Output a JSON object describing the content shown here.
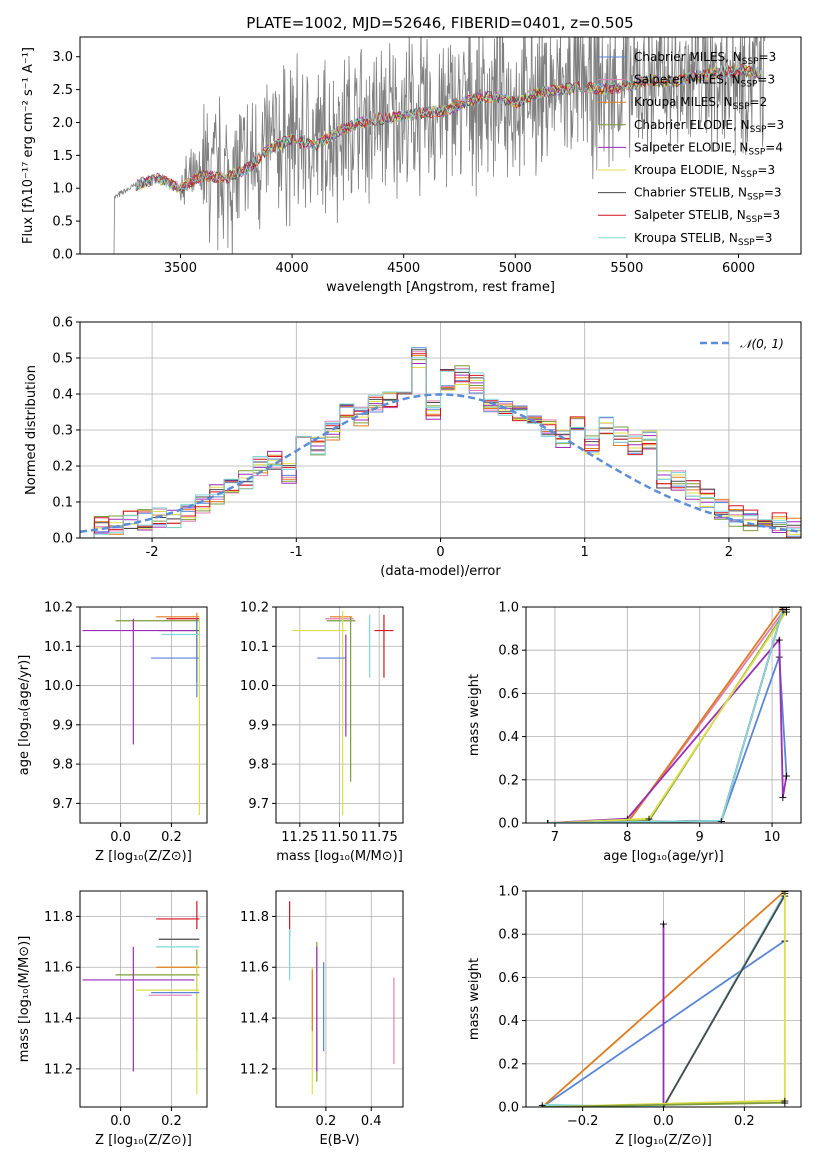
{
  "colors": {
    "Chabrier MILES": "#5b86d6",
    "Salpeter MILES": "#e07fb3",
    "Kroupa MILES": "#e07c1e",
    "Chabrier ELODIE": "#7d9c3e",
    "Salpeter ELODIE": "#9b2eb8",
    "Kroupa ELODIE": "#dede4a",
    "Chabrier STELIB": "#4a4a4a",
    "Salpeter STELIB": "#d4141e",
    "Kroupa STELIB": "#7fd9de",
    "gauss": "#5b8ed6",
    "data": "#7f7f7f"
  },
  "chart_data": [
    {
      "id": "spectrum",
      "type": "line",
      "title": "PLATE=1002, MJD=52646, FIBERID=0401, z=0.505",
      "xlabel": "wavelength [Angstrom, rest frame]",
      "ylabel": "Flux [fλ10⁻¹⁷ erg cm⁻² s⁻¹ A⁻¹]",
      "xlim": [
        3050,
        6280
      ],
      "ylim": [
        0,
        3.3
      ],
      "xticks": [
        3500,
        4000,
        4500,
        5000,
        5500,
        6000
      ],
      "yticks": [
        0.0,
        0.5,
        1.0,
        1.5,
        2.0,
        2.5,
        3.0
      ],
      "legend_position": "upper right",
      "legend": [
        {
          "name": "Chabrier MILES",
          "nssp": "3"
        },
        {
          "name": "Salpeter MILES",
          "nssp": "3"
        },
        {
          "name": "Kroupa MILES",
          "nssp": "2"
        },
        {
          "name": "Chabrier ELODIE",
          "nssp": "3"
        },
        {
          "name": "Salpeter ELODIE",
          "nssp": "4"
        },
        {
          "name": "Kroupa ELODIE",
          "nssp": "3"
        },
        {
          "name": "Chabrier STELIB",
          "nssp": "3"
        },
        {
          "name": "Salpeter STELIB",
          "nssp": "3"
        },
        {
          "name": "Kroupa STELIB",
          "nssp": "3"
        }
      ],
      "model_continuum": {
        "x": [
          3200,
          3300,
          3400,
          3500,
          3600,
          3700,
          3800,
          3900,
          4000,
          4100,
          4200,
          4300,
          4400,
          4500,
          4600,
          4700,
          4800,
          4900,
          5000,
          5100,
          5200,
          5300,
          5400,
          5500,
          5600,
          5700,
          5800,
          5900,
          6000,
          6100
        ],
        "y": [
          0.85,
          1.05,
          1.15,
          1.0,
          1.2,
          1.15,
          1.3,
          1.6,
          1.75,
          1.65,
          1.85,
          2.0,
          2.05,
          2.1,
          2.15,
          2.2,
          2.35,
          2.4,
          2.3,
          2.45,
          2.5,
          2.55,
          2.5,
          2.55,
          2.65,
          2.6,
          2.7,
          2.75,
          2.8,
          2.75
        ]
      }
    },
    {
      "id": "residuals",
      "type": "bar",
      "xlabel": "(data-model)/error",
      "ylabel": "Normed distribution",
      "xlim": [
        -2.5,
        2.5
      ],
      "ylim": [
        0,
        0.6
      ],
      "xticks": [
        -2,
        -1,
        0,
        1,
        2
      ],
      "yticks": [
        0.0,
        0.1,
        0.2,
        0.3,
        0.4,
        0.5,
        0.6
      ],
      "legend_position": "upper right",
      "gauss_label": "𝒩(0, 1)",
      "bin_edges": [
        -2.5,
        -2.4,
        -2.3,
        -2.2,
        -2.1,
        -2.0,
        -1.9,
        -1.8,
        -1.7,
        -1.6,
        -1.5,
        -1.4,
        -1.3,
        -1.2,
        -1.1,
        -1.0,
        -0.9,
        -0.8,
        -0.7,
        -0.6,
        -0.5,
        -0.4,
        -0.3,
        -0.2,
        -0.1,
        0.0,
        0.1,
        0.2,
        0.3,
        0.4,
        0.5,
        0.6,
        0.7,
        0.8,
        0.9,
        1.0,
        1.1,
        1.2,
        1.3,
        1.4,
        1.5,
        1.6,
        1.7,
        1.8,
        1.9,
        2.0,
        2.1,
        2.2,
        2.3,
        2.4,
        2.5
      ],
      "hist_mean": [
        0.02,
        0.03,
        0.04,
        0.05,
        0.05,
        0.06,
        0.05,
        0.07,
        0.09,
        0.12,
        0.14,
        0.16,
        0.2,
        0.22,
        0.18,
        0.28,
        0.26,
        0.3,
        0.35,
        0.34,
        0.37,
        0.39,
        0.4,
        0.5,
        0.36,
        0.44,
        0.45,
        0.43,
        0.38,
        0.36,
        0.34,
        0.31,
        0.3,
        0.28,
        0.31,
        0.26,
        0.31,
        0.28,
        0.26,
        0.27,
        0.16,
        0.16,
        0.13,
        0.11,
        0.08,
        0.06,
        0.05,
        0.04,
        0.04,
        0.03
      ]
    },
    {
      "id": "age_vs_Z",
      "type": "scatter",
      "xlabel": "Z [log₁₀(Z/Z⊙)]",
      "ylabel": "age  [log₁₀(age/yr)]",
      "xlim": [
        -0.16,
        0.34
      ],
      "ylim": [
        9.65,
        10.2
      ],
      "xticks": [
        "0.0",
        "0.2"
      ],
      "yticks": [
        "9.7",
        "9.8",
        "9.9",
        "10.0",
        "10.1",
        "10.2"
      ]
    },
    {
      "id": "age_vs_mass",
      "type": "scatter",
      "xlabel": "mass [log₁₀(M/M⊙)]",
      "ylabel": "",
      "xlim": [
        11.1,
        11.9
      ],
      "ylim": [
        9.65,
        10.2
      ],
      "xticks": [
        "11.25",
        "11.50",
        "11.75"
      ],
      "yticks": [
        "9.7",
        "9.8",
        "9.9",
        "10.0",
        "10.1",
        "10.2"
      ]
    },
    {
      "id": "weight_vs_age",
      "type": "line",
      "xlabel": "age  [log₁₀(age/yr)]",
      "ylabel": "mass weight",
      "xlim": [
        6.6,
        10.4
      ],
      "ylim": [
        0,
        1
      ],
      "xticks": [
        "7",
        "8",
        "9",
        "10"
      ],
      "yticks": [
        "0.0",
        "0.2",
        "0.4",
        "0.6",
        "0.8",
        "1.0"
      ],
      "series": [
        {
          "key": "Chabrier MILES",
          "x": [
            6.9,
            9.3,
            10.1,
            10.2
          ],
          "y": [
            0.0,
            0.01,
            0.77,
            0.22
          ]
        },
        {
          "key": "Salpeter MILES",
          "x": [
            6.9,
            8.0,
            10.2
          ],
          "y": [
            0.0,
            0.0,
            1.0
          ]
        },
        {
          "key": "Kroupa MILES",
          "x": [
            8.0,
            10.15
          ],
          "y": [
            0.0,
            1.0
          ]
        },
        {
          "key": "Chabrier ELODIE",
          "x": [
            6.9,
            8.3,
            10.2
          ],
          "y": [
            0.0,
            0.01,
            0.99
          ]
        },
        {
          "key": "Salpeter ELODIE",
          "x": [
            6.9,
            8.0,
            10.1,
            10.15,
            10.2
          ],
          "y": [
            0.0,
            0.02,
            0.85,
            0.12,
            0.22
          ]
        },
        {
          "key": "Kroupa ELODIE",
          "x": [
            6.9,
            8.3,
            10.2
          ],
          "y": [
            0.0,
            0.02,
            0.98
          ]
        },
        {
          "key": "Chabrier STELIB",
          "x": [
            6.9,
            9.3,
            10.15
          ],
          "y": [
            0.0,
            0.01,
            0.99
          ]
        },
        {
          "key": "Salpeter STELIB",
          "x": [
            6.9,
            9.3,
            10.15
          ],
          "y": [
            0.0,
            0.01,
            0.99
          ]
        },
        {
          "key": "Kroupa STELIB",
          "x": [
            6.9,
            9.3,
            10.15
          ],
          "y": [
            0.0,
            0.01,
            0.99
          ]
        }
      ]
    },
    {
      "id": "mass_vs_Z",
      "type": "scatter",
      "xlabel": "Z [log₁₀(Z/Z⊙)]",
      "ylabel": "mass [log₁₀(M/M⊙)]",
      "xlim": [
        -0.16,
        0.34
      ],
      "ylim": [
        11.05,
        11.9
      ],
      "xticks": [
        "0.0",
        "0.2"
      ],
      "yticks": [
        "11.2",
        "11.4",
        "11.6",
        "11.8"
      ]
    },
    {
      "id": "mass_vs_ebv",
      "type": "scatter",
      "xlabel": "E(B-V)",
      "ylabel": "",
      "xlim": [
        -0.02,
        0.54
      ],
      "ylim": [
        11.05,
        11.9
      ],
      "xticks": [
        "0.2",
        "0.4"
      ],
      "yticks": [
        "11.2",
        "11.4",
        "11.6",
        "11.8"
      ]
    },
    {
      "id": "weight_vs_Z",
      "type": "line",
      "xlabel": "Z [log₁₀(Z/Z⊙)]",
      "ylabel": "mass weight",
      "xlim": [
        -0.34,
        0.34
      ],
      "ylim": [
        0,
        1
      ],
      "xticks": [
        "−0.2",
        "0.0",
        "0.2"
      ],
      "yticks": [
        "0.0",
        "0.2",
        "0.4",
        "0.6",
        "0.8",
        "1.0"
      ],
      "series": [
        {
          "key": "Chabrier MILES",
          "x": [
            -0.3,
            0.3
          ],
          "y": [
            0.0,
            0.77
          ]
        },
        {
          "key": "Kroupa MILES",
          "x": [
            -0.3,
            0.3
          ],
          "y": [
            0.0,
            1.0
          ]
        },
        {
          "key": "Salpeter ELODIE",
          "x": [
            0.0,
            0.0
          ],
          "y": [
            0.0,
            0.85
          ]
        },
        {
          "key": "Kroupa STELIB",
          "x": [
            -0.3,
            0.0,
            0.3
          ],
          "y": [
            0.01,
            0.0,
            0.99
          ]
        },
        {
          "key": "Chabrier STELIB",
          "x": [
            0.0,
            0.3
          ],
          "y": [
            0.0,
            0.98
          ]
        },
        {
          "key": "Kroupa ELODIE",
          "x": [
            -0.3,
            0.3,
            0.3
          ],
          "y": [
            0.0,
            0.03,
            1.0
          ]
        },
        {
          "key": "Chabrier ELODIE",
          "x": [
            -0.3,
            0.3
          ],
          "y": [
            0.0,
            0.02
          ]
        }
      ]
    }
  ]
}
